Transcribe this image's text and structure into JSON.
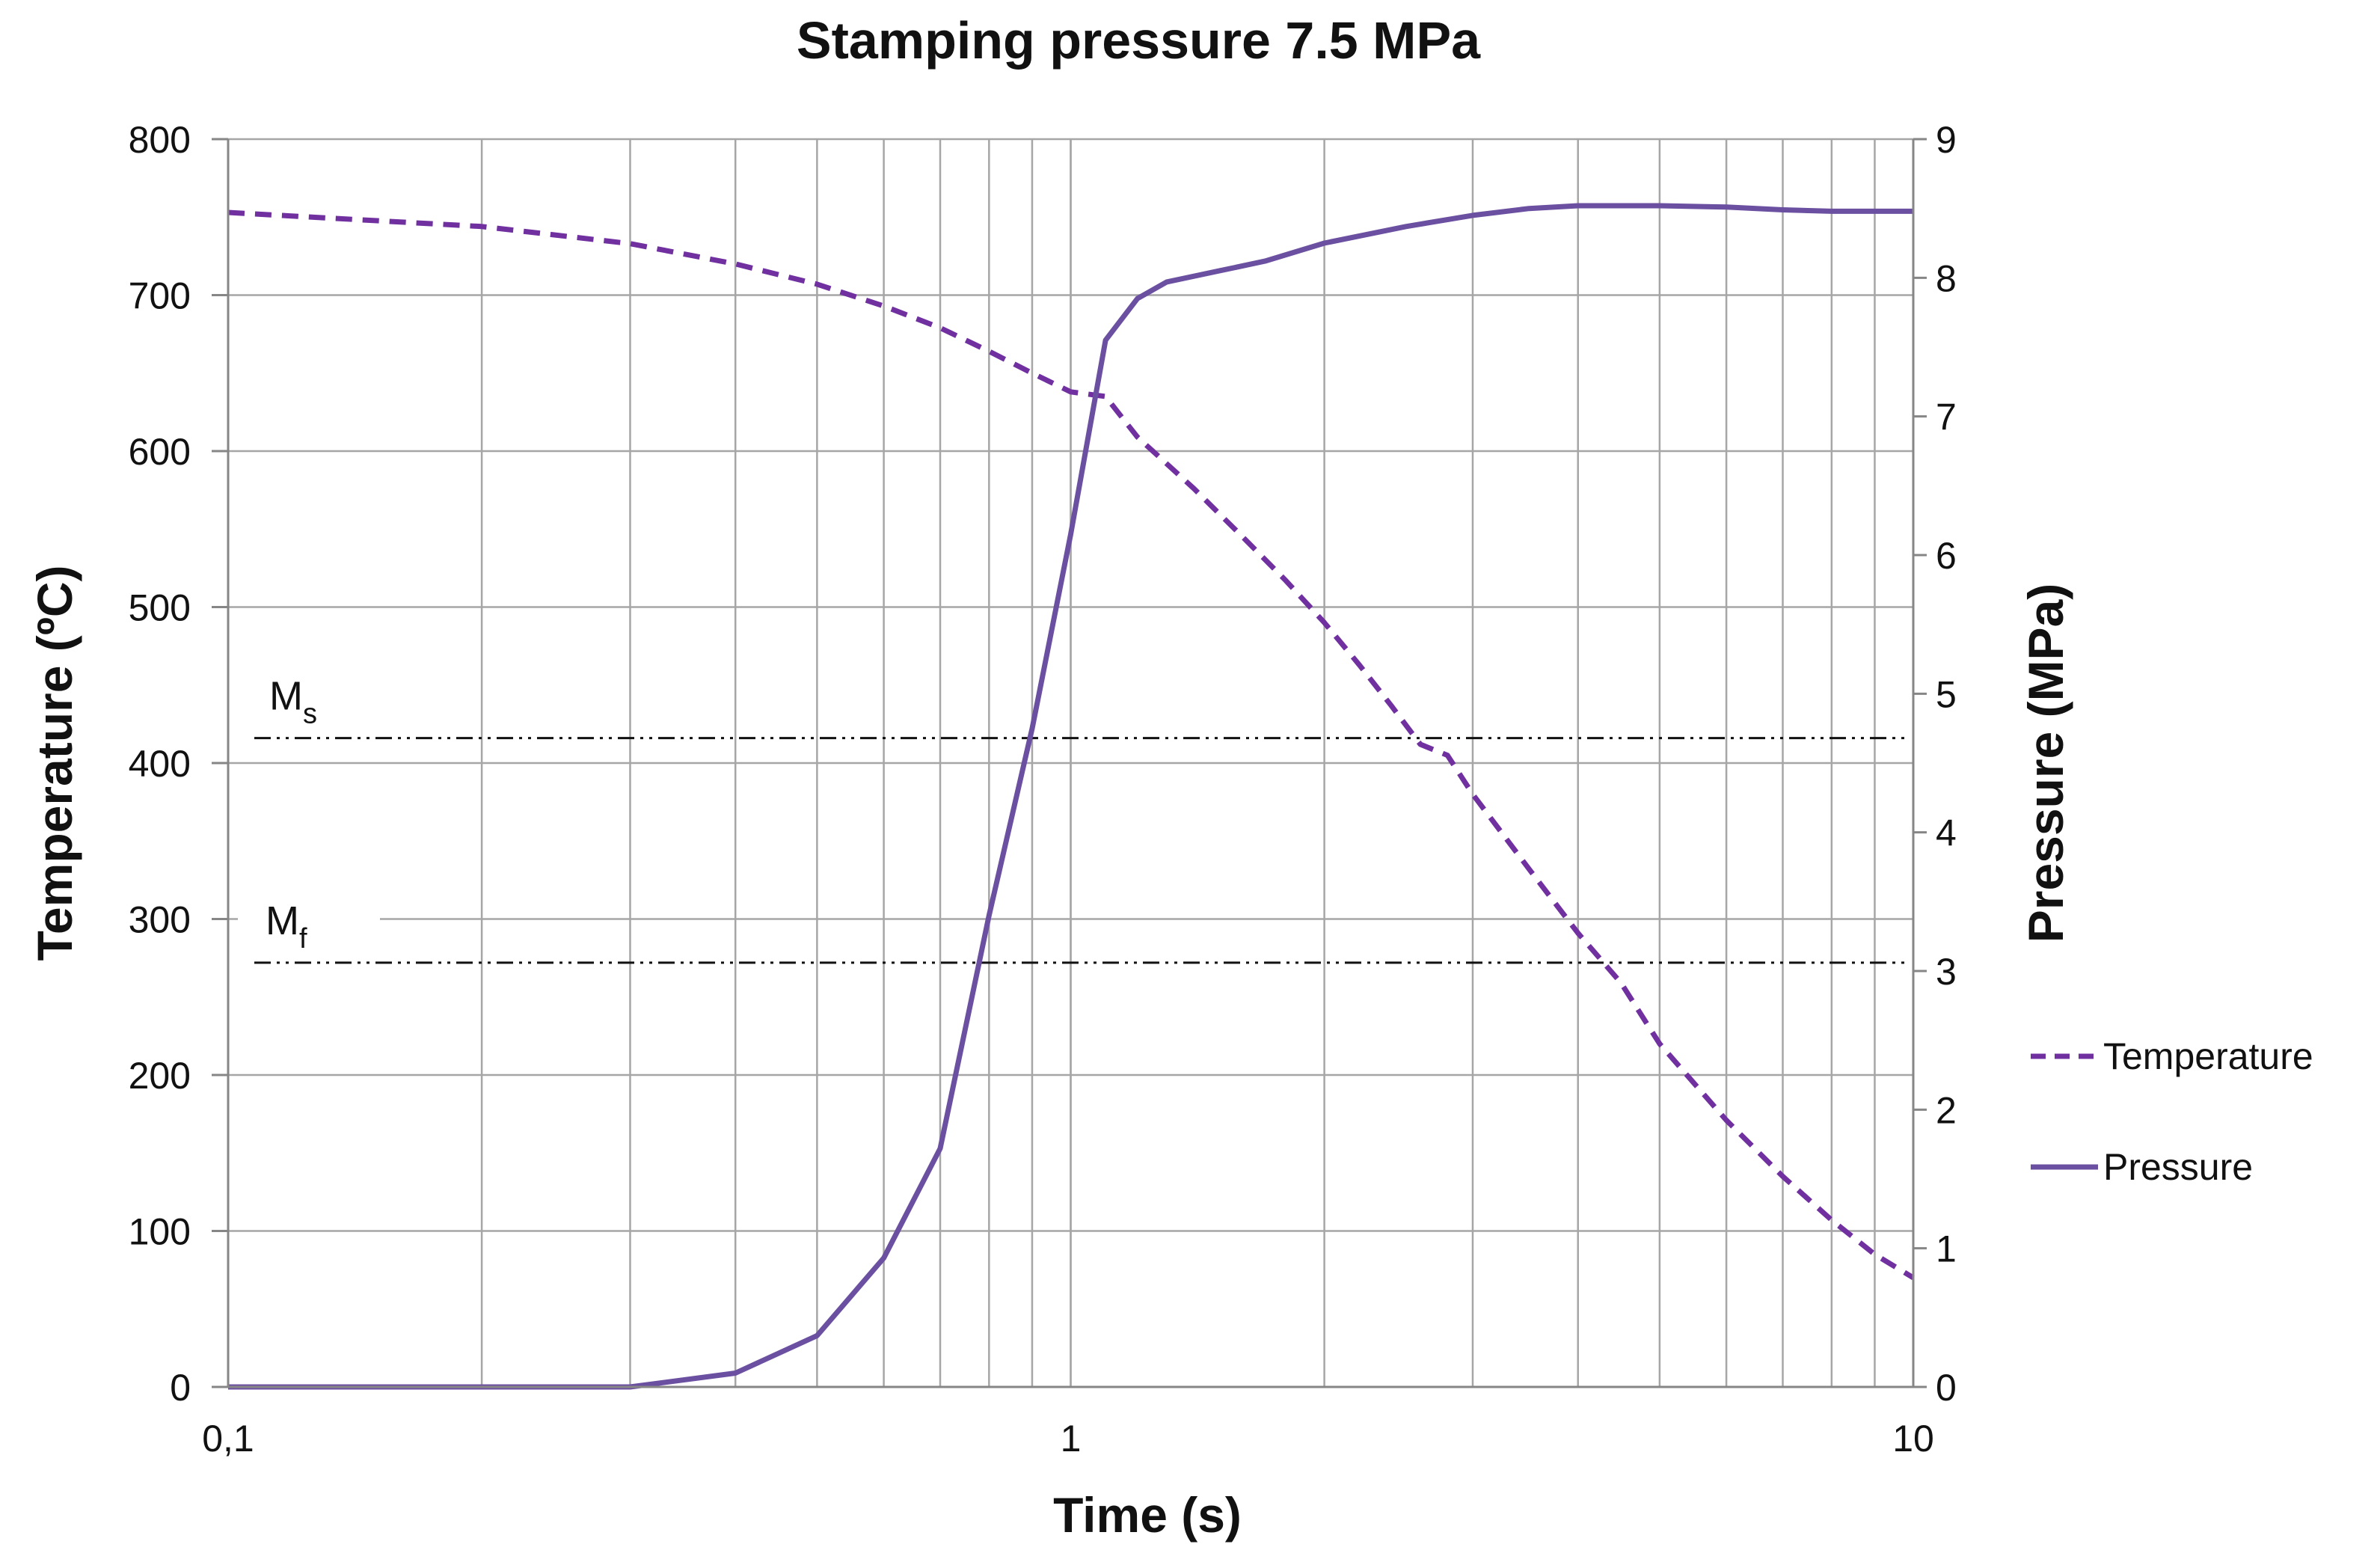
{
  "chart_data": {
    "type": "line",
    "title": "Stamping pressure 7.5 MPa",
    "xlabel": "Time (s)",
    "ylabel": "Temperature (ºC)",
    "y2label": "Pressure (MPa)",
    "x_scale": "log",
    "xlim": [
      0.1,
      10
    ],
    "ylim": [
      0,
      800
    ],
    "y2lim": [
      0,
      9
    ],
    "x_ticks": [
      0.1,
      1,
      10
    ],
    "x_tick_labels": [
      "0,1",
      "1",
      "10"
    ],
    "y_ticks": [
      0,
      100,
      200,
      300,
      400,
      500,
      600,
      700,
      800
    ],
    "y_tick_labels": [
      "0",
      "100",
      "200",
      "300",
      "400",
      "500",
      "600",
      "700",
      "800"
    ],
    "y2_ticks": [
      0,
      1,
      2,
      3,
      4,
      5,
      6,
      7,
      8,
      9
    ],
    "y2_tick_labels": [
      "0",
      "1",
      "2",
      "3",
      "4",
      "5",
      "6",
      "7",
      "8",
      "9"
    ],
    "grid": true,
    "legend_position": "right",
    "series": [
      {
        "name": "Temperature",
        "axis": "left",
        "style": "dashed",
        "color": "#7030a0",
        "x": [
          0.1,
          0.2,
          0.3,
          0.4,
          0.5,
          0.6,
          0.7,
          0.8,
          0.9,
          1.0,
          1.1,
          1.2,
          1.4,
          1.6,
          1.8,
          2.0,
          2.2,
          2.4,
          2.6,
          2.8,
          3.0,
          3.5,
          4.0,
          4.5,
          5.0,
          6.0,
          7.0,
          8.0,
          9.0,
          10.0
        ],
        "y": [
          753,
          744,
          733,
          720,
          707,
          693,
          679,
          664,
          650,
          638,
          635,
          609,
          576,
          545,
          517,
          490,
          463,
          437,
          412,
          405,
          380,
          332,
          291,
          259,
          220,
          171,
          135,
          107,
          85,
          70
        ]
      },
      {
        "name": "Pressure",
        "axis": "right",
        "style": "solid",
        "color": "#6b4fa0",
        "x": [
          0.1,
          0.2,
          0.3,
          0.4,
          0.5,
          0.6,
          0.7,
          0.8,
          0.9,
          1.0,
          1.1,
          1.2,
          1.3,
          1.5,
          1.7,
          2.0,
          2.5,
          3.0,
          3.5,
          4.0,
          5.0,
          6.0,
          7.0,
          8.0,
          9.0,
          10.0
        ],
        "y": [
          0,
          0,
          0,
          0.1,
          0.37,
          0.93,
          1.72,
          3.4,
          4.75,
          6.15,
          7.55,
          7.85,
          7.97,
          8.05,
          8.12,
          8.25,
          8.37,
          8.45,
          8.5,
          8.52,
          8.52,
          8.51,
          8.49,
          8.48,
          8.48,
          8.48
        ]
      }
    ],
    "annotations": [
      {
        "label": "M",
        "subscript": "s",
        "y": 416,
        "style": "dash-dot-dot"
      },
      {
        "label": "M",
        "subscript": "f",
        "y": 272,
        "style": "dash-dot-dot"
      }
    ]
  }
}
